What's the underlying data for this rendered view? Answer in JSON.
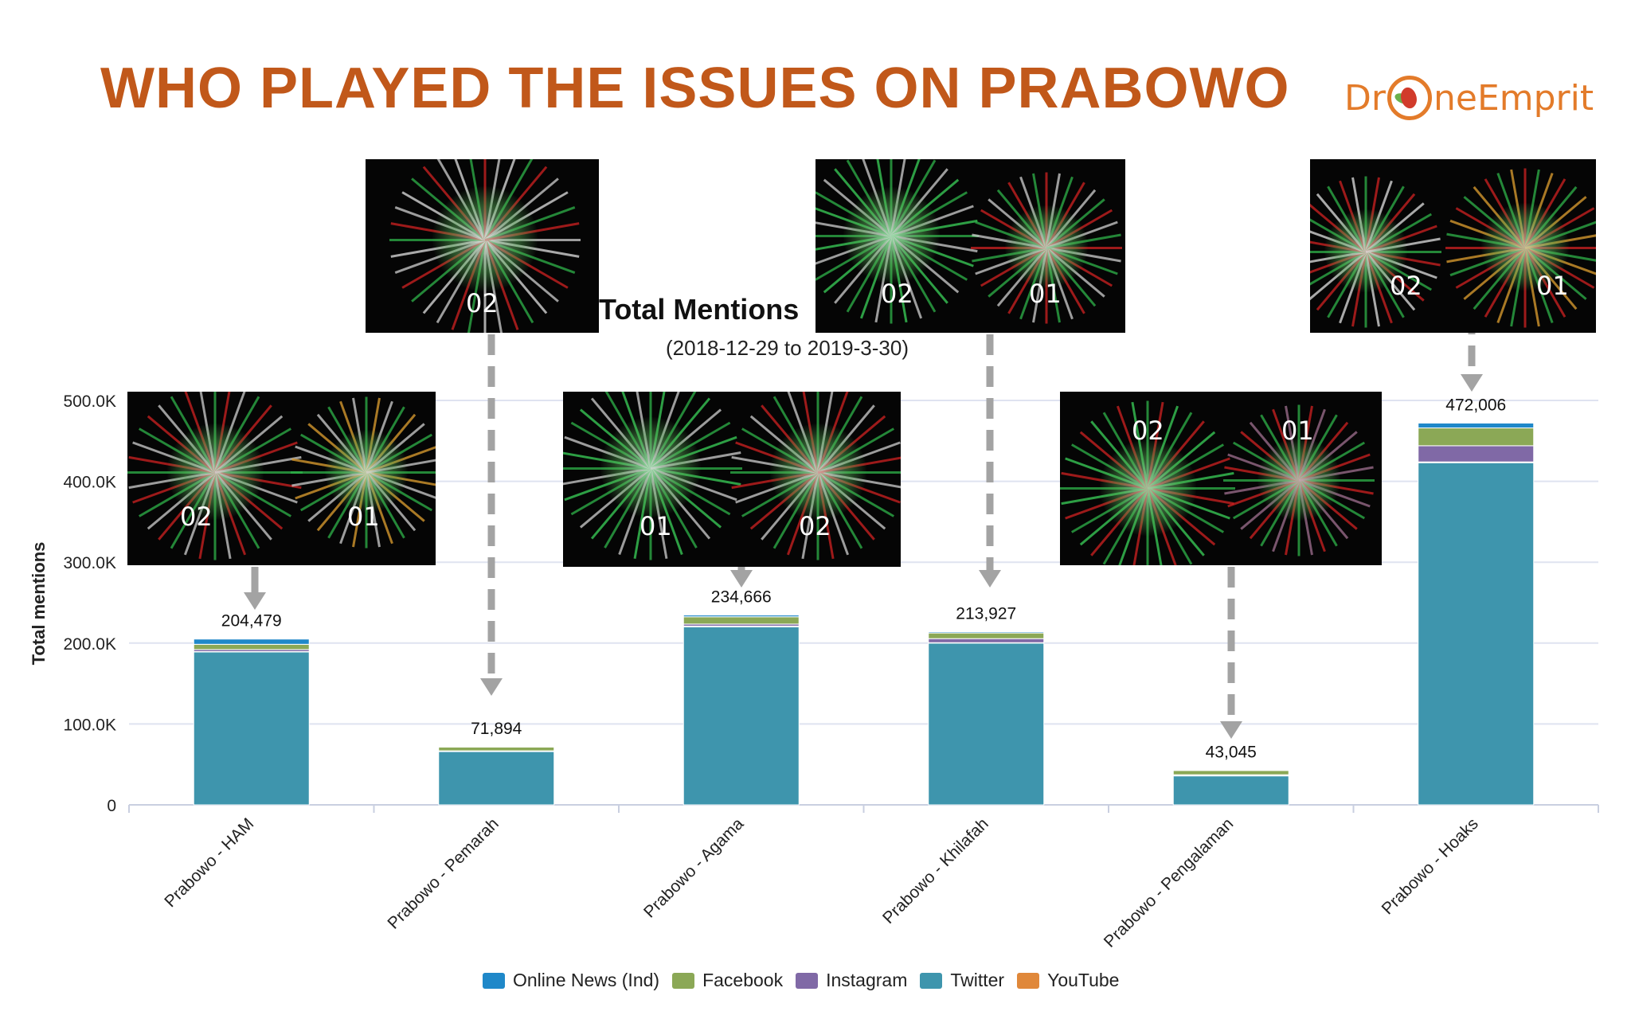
{
  "slide": {
    "title": "WHO PLAYED THE ISSUES ON PRABOWO",
    "logo_left": "Dr",
    "logo_right": "neEmprit"
  },
  "network_images": [
    {
      "labels": [
        "02"
      ]
    },
    {
      "labels": [
        "02",
        "01"
      ]
    },
    {
      "labels": [
        "02",
        "01"
      ]
    },
    {
      "labels": [
        "02",
        "01"
      ]
    },
    {
      "labels": [
        "01",
        "02"
      ]
    },
    {
      "labels": [
        "02",
        "01"
      ]
    }
  ],
  "chart_data": {
    "type": "bar",
    "stacked": true,
    "title": "Total Mentions",
    "subtitle": "(2018-12-29 to 2019-3-30)",
    "xlabel": "",
    "ylabel": "Total mentions",
    "ylim": [
      0,
      500000
    ],
    "yticks": [
      "0",
      "100.0K",
      "200.0K",
      "300.0K",
      "400.0K",
      "500.0K"
    ],
    "grid": true,
    "legend_position": "bottom",
    "categories": [
      "Prabowo - HAM",
      "Prabowo - Pemarah",
      "Prabowo - Agama",
      "Prabowo - Khilafah",
      "Prabowo - Pengalaman",
      "Prabowo - Hoaks"
    ],
    "totals": [
      "204,479",
      "71,894",
      "234,666",
      "213,927",
      "43,045",
      "472,006"
    ],
    "series": [
      {
        "name": "Twitter",
        "color": "#3e95ad",
        "values": [
          189000,
          66000,
          220000,
          200000,
          36000,
          423000
        ]
      },
      {
        "name": "YouTube",
        "color": "#e0883a",
        "values": [
          500,
          300,
          1000,
          500,
          200,
          1000
        ]
      },
      {
        "name": "Instagram",
        "color": "#8069a6",
        "values": [
          2500,
          500,
          2500,
          5000,
          1000,
          20000
        ]
      },
      {
        "name": "Facebook",
        "color": "#8ba856",
        "values": [
          6500,
          4600,
          9000,
          7000,
          5300,
          22000
        ]
      },
      {
        "name": "Online News (Ind)",
        "color": "#1f88c9",
        "values": [
          6479,
          494,
          2166,
          1427,
          545,
          6006
        ]
      }
    ],
    "legend_order": [
      "Online News (Ind)",
      "Facebook",
      "Instagram",
      "Twitter",
      "YouTube"
    ]
  }
}
